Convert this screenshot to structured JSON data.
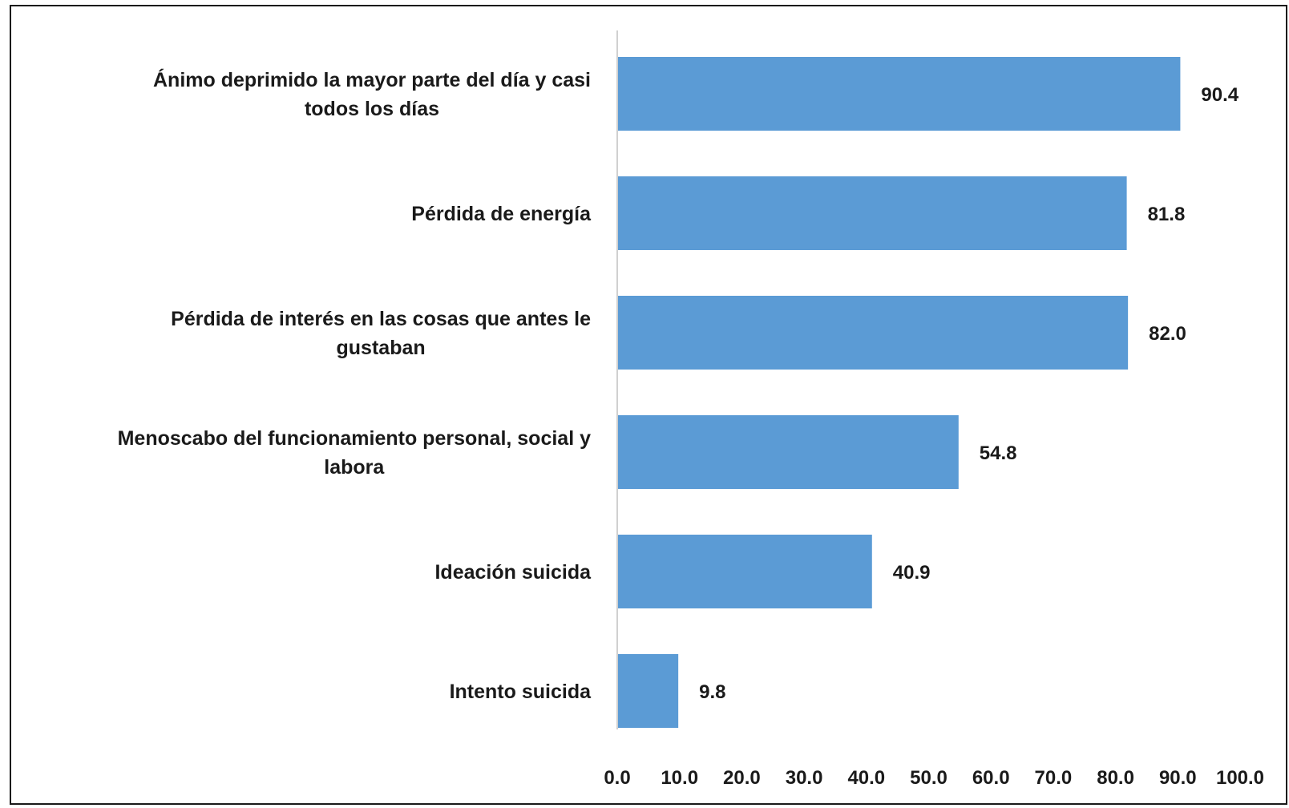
{
  "chart_data": {
    "type": "bar",
    "orientation": "horizontal",
    "categories": [
      [
        "Ánimo deprimido la mayor parte del día y casi",
        "todos los días"
      ],
      [
        "Pérdida de energía"
      ],
      [
        "Pérdida de interés en las cosas que antes le",
        "gustaban"
      ],
      [
        "Menoscabo del funcionamiento personal, social y",
        "labora"
      ],
      [
        "Ideación suicida"
      ],
      [
        "Intento suicida"
      ]
    ],
    "values": [
      90.4,
      81.8,
      82.0,
      54.8,
      40.9,
      9.8
    ],
    "value_labels": [
      "90.4",
      "81.8",
      "82.0",
      "54.8",
      "40.9",
      "9.8"
    ],
    "xlim": [
      0,
      100
    ],
    "x_ticks": [
      "0.0",
      "10.0",
      "20.0",
      "30.0",
      "40.0",
      "50.0",
      "60.0",
      "70.0",
      "80.0",
      "90.0",
      "100.0"
    ],
    "bar_color": "#5b9bd5",
    "grid": false,
    "title": "",
    "xlabel": "",
    "ylabel": ""
  }
}
